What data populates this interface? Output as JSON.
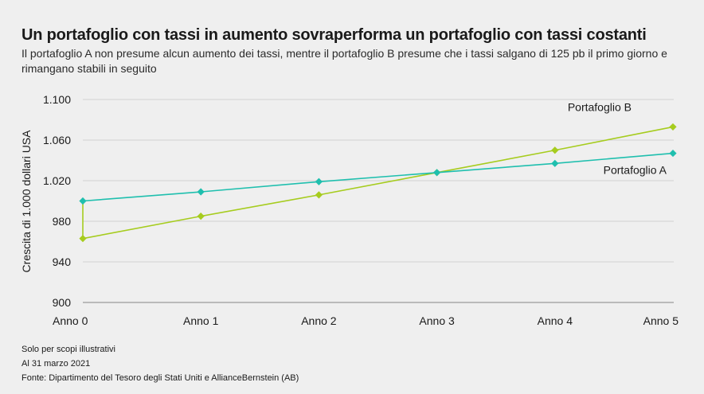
{
  "chart_data": {
    "type": "line",
    "title": "Un portafoglio con tassi in aumento sovraperforma un portafoglio con tassi costanti",
    "subtitle": "Il portafoglio A non presume alcun aumento dei tassi, mentre il portafoglio B presume che i tassi salgano di 125 pb il primo giorno e rimangano stabili in seguito",
    "ylabel": "Crescita di 1.000 dollari USA",
    "xlabel": "",
    "categories": [
      "Anno 0",
      "Anno 1",
      "Anno 2",
      "Anno 3",
      "Anno 4",
      "Anno 5"
    ],
    "yticks": [
      "900",
      "940",
      "980",
      "1.020",
      "1.060",
      "1.100"
    ],
    "ytick_values": [
      900,
      940,
      980,
      1020,
      1060,
      1100
    ],
    "ylim": [
      900,
      1100
    ],
    "grid": true,
    "series": [
      {
        "name": "Portafoglio A",
        "color": "#1fbfae",
        "values": [
          1000,
          1009,
          1019,
          1028,
          1037,
          1047
        ]
      },
      {
        "name": "Portafoglio B",
        "color": "#a6cc1e",
        "start_value": 1000,
        "values": [
          963,
          985,
          1006,
          1028,
          1050,
          1073
        ]
      }
    ]
  },
  "footnotes": {
    "line1": "Solo per scopi illustrativi",
    "line2": "Al 31 marzo 2021",
    "line3": "Fonte: Dipartimento del Tesoro degli Stati Uniti e AllianceBernstein (AB)"
  },
  "colors": {
    "background": "#efefef",
    "grid": "#c8c8c8",
    "axis": "#9a9a9a"
  }
}
